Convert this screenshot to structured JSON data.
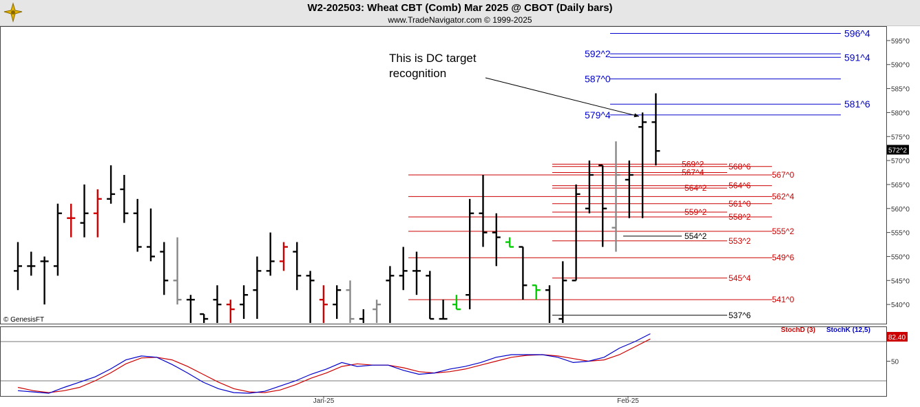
{
  "header": {
    "title": "W2-202503:  Wheat CBT (Comb) Mar 2025 @ CBOT  (Daily bars)",
    "subtitle": "www.TradeNavigator.com © 1999-2025"
  },
  "chart_data": {
    "type": "ohlc",
    "y_axis": {
      "range": [
        536,
        598
      ],
      "ticks": [
        "540^0",
        "545^0",
        "550^0",
        "555^0",
        "560^0",
        "565^0",
        "570^0",
        "575^0",
        "580^0",
        "585^0",
        "590^0",
        "595^0"
      ]
    },
    "x_axis": {
      "labels": [
        "Jan-25",
        "Feb-25"
      ]
    },
    "last_price_label": "572^2",
    "watermark": "© GenesisFT",
    "annotation": {
      "lines": [
        "This is DC target",
        "recognition"
      ]
    },
    "bars": [
      {
        "o": 547,
        "h": 553,
        "l": 543,
        "c": 548,
        "color": "#000000"
      },
      {
        "o": 548,
        "h": 551,
        "l": 546,
        "c": 548,
        "color": "#000000"
      },
      {
        "o": 549,
        "h": 550,
        "l": 540,
        "c": 549,
        "color": "#000000"
      },
      {
        "o": 548,
        "h": 561,
        "l": 546,
        "c": 559,
        "color": "#000000"
      },
      {
        "o": 558,
        "h": 561,
        "l": 554,
        "c": 558,
        "color": "#cc0000"
      },
      {
        "o": 557,
        "h": 565,
        "l": 554,
        "c": 559,
        "color": "#000000"
      },
      {
        "o": 559,
        "h": 564,
        "l": 554,
        "c": 562,
        "color": "#cc0000"
      },
      {
        "o": 562,
        "h": 569,
        "l": 561,
        "c": 563,
        "color": "#000000"
      },
      {
        "o": 564,
        "h": 567,
        "l": 557,
        "c": 559,
        "color": "#000000"
      },
      {
        "o": 559,
        "h": 562,
        "l": 551,
        "c": 552,
        "color": "#000000"
      },
      {
        "o": 552,
        "h": 560,
        "l": 549,
        "c": 550,
        "color": "#000000"
      },
      {
        "o": 551,
        "h": 553,
        "l": 542,
        "c": 545,
        "color": "#000000"
      },
      {
        "o": 545,
        "h": 554,
        "l": 540,
        "c": 541,
        "color": "#888888"
      },
      {
        "o": 541,
        "h": 542,
        "l": 536,
        "c": 541,
        "color": "#000000"
      },
      {
        "o": 538,
        "h": 538,
        "l": 536,
        "c": 537,
        "color": "#000000"
      },
      {
        "o": 541,
        "h": 544,
        "l": 536,
        "c": 540,
        "color": "#000000"
      },
      {
        "o": 540,
        "h": 541,
        "l": 536,
        "c": 539,
        "color": "#cc0000"
      },
      {
        "o": 540,
        "h": 544,
        "l": 537,
        "c": 542,
        "color": "#000000"
      },
      {
        "o": 543,
        "h": 550,
        "l": 537,
        "c": 547,
        "color": "#000000"
      },
      {
        "o": 547,
        "h": 555,
        "l": 546,
        "c": 549,
        "color": "#000000"
      },
      {
        "o": 549,
        "h": 553,
        "l": 547,
        "c": 552,
        "color": "#cc0000"
      },
      {
        "o": 551,
        "h": 553,
        "l": 543,
        "c": 546,
        "color": "#000000"
      },
      {
        "o": 546,
        "h": 547,
        "l": 536,
        "c": 545,
        "color": "#000000"
      },
      {
        "o": 541,
        "h": 544,
        "l": 536,
        "c": 540,
        "color": "#cc0000"
      },
      {
        "o": 540,
        "h": 544,
        "l": 537,
        "c": 543,
        "color": "#000000"
      },
      {
        "o": 543,
        "h": 545,
        "l": 536,
        "c": 537,
        "color": "#888888"
      },
      {
        "o": 537,
        "h": 539,
        "l": 536,
        "c": 536,
        "color": "#000000"
      },
      {
        "o": 539,
        "h": 541,
        "l": 536,
        "c": 540,
        "color": "#888888"
      },
      {
        "o": 545,
        "h": 548,
        "l": 536,
        "c": 546,
        "color": "#000000"
      },
      {
        "o": 546,
        "h": 552,
        "l": 543,
        "c": 547,
        "color": "#000000"
      },
      {
        "o": 547,
        "h": 551,
        "l": 542,
        "c": 547,
        "color": "#000000"
      },
      {
        "o": 546,
        "h": 547,
        "l": 537,
        "c": 537,
        "color": "#000000"
      },
      {
        "o": 537,
        "h": 541,
        "l": 537,
        "c": 537,
        "color": "#000000"
      },
      {
        "o": 540,
        "h": 542,
        "l": 539,
        "c": 539,
        "color": "#00cc00"
      },
      {
        "o": 542,
        "h": 562,
        "l": 539,
        "c": 559,
        "color": "#000000"
      },
      {
        "o": 559,
        "h": 567,
        "l": 552,
        "c": 555,
        "color": "#000000"
      },
      {
        "o": 555,
        "h": 559,
        "l": 548,
        "c": 554,
        "color": "#000000"
      },
      {
        "o": 553,
        "h": 554,
        "l": 552,
        "c": 552,
        "color": "#00cc00"
      },
      {
        "o": 552,
        "h": 552,
        "l": 541,
        "c": 544,
        "color": "#000000"
      },
      {
        "o": 544,
        "h": 544,
        "l": 541,
        "c": 543,
        "color": "#00cc00"
      },
      {
        "o": 543,
        "h": 544,
        "l": 536,
        "c": 536,
        "color": "#000000"
      },
      {
        "o": 537,
        "h": 549,
        "l": 536,
        "c": 545,
        "color": "#000000"
      },
      {
        "o": 545,
        "h": 565,
        "l": 545,
        "c": 563,
        "color": "#000000"
      },
      {
        "o": 560,
        "h": 570,
        "l": 559,
        "c": 567,
        "color": "#000000"
      },
      {
        "o": 569,
        "h": 569,
        "l": 552,
        "c": 560,
        "color": "#000000"
      },
      {
        "o": 556,
        "h": 574,
        "l": 551,
        "c": 567,
        "color": "#888888"
      },
      {
        "o": 566,
        "h": 570,
        "l": 558,
        "c": 567,
        "color": "#000000"
      },
      {
        "o": 577,
        "h": 580,
        "l": 558,
        "c": 578,
        "color": "#000000"
      },
      {
        "o": 578,
        "h": 584,
        "l": 569,
        "c": 572,
        "color": "#000000"
      }
    ],
    "levels": [
      {
        "value": 596.5,
        "label": "596^4",
        "color": "#0000cc"
      },
      {
        "value": 592.25,
        "label": "592^2",
        "color": "#0000cc"
      },
      {
        "value": 591.5,
        "label": "591^4",
        "color": "#0000cc"
      },
      {
        "value": 587,
        "label": "587^0",
        "color": "#0000cc"
      },
      {
        "value": 581.75,
        "label": "581^6",
        "color": "#0000cc"
      },
      {
        "value": 579.5,
        "label": "579^4",
        "color": "#0000cc"
      },
      {
        "value": 569.25,
        "label": "569^2",
        "color": "#cc0000"
      },
      {
        "value": 568.75,
        "label": "568^6",
        "color": "#cc0000"
      },
      {
        "value": 567.5,
        "label": "567^4",
        "color": "#cc0000"
      },
      {
        "value": 567,
        "label": "567^0",
        "color": "#cc0000"
      },
      {
        "value": 564.75,
        "label": "564^6",
        "color": "#cc0000"
      },
      {
        "value": 564.25,
        "label": "564^2",
        "color": "#cc0000"
      },
      {
        "value": 562.5,
        "label": "562^4",
        "color": "#cc0000"
      },
      {
        "value": 561,
        "label": "561^0",
        "color": "#cc0000"
      },
      {
        "value": 559.25,
        "label": "559^2",
        "color": "#cc0000"
      },
      {
        "value": 558.25,
        "label": "558^2",
        "color": "#cc0000"
      },
      {
        "value": 555.25,
        "label": "555^2",
        "color": "#cc0000"
      },
      {
        "value": 554.25,
        "label": "554^2",
        "color": "#000000"
      },
      {
        "value": 553.25,
        "label": "553^2",
        "color": "#cc0000"
      },
      {
        "value": 549.75,
        "label": "549^6",
        "color": "#cc0000"
      },
      {
        "value": 545.5,
        "label": "545^4",
        "color": "#cc0000"
      },
      {
        "value": 541,
        "label": "541^0",
        "color": "#cc0000"
      },
      {
        "value": 537.75,
        "label": "537^6",
        "color": "#000000"
      }
    ],
    "stochastic": {
      "legend": [
        {
          "name": "StochD (3)",
          "color": "#cc0000"
        },
        {
          "name": "StochK (12,5)",
          "color": "#0000cc"
        }
      ],
      "y_tick": "50",
      "value_label": "82.40",
      "k": [
        5,
        3,
        1,
        10,
        18,
        26,
        38,
        52,
        58,
        56,
        45,
        32,
        18,
        8,
        2,
        1,
        4,
        12,
        20,
        30,
        38,
        48,
        42,
        44,
        44,
        36,
        30,
        32,
        38,
        42,
        48,
        56,
        60,
        60,
        60,
        56,
        48,
        50,
        56,
        70,
        80,
        92
      ],
      "d": [
        10,
        5,
        2,
        5,
        10,
        20,
        32,
        46,
        55,
        56,
        52,
        42,
        30,
        18,
        8,
        3,
        2,
        6,
        14,
        24,
        32,
        42,
        46,
        44,
        44,
        40,
        34,
        32,
        34,
        38,
        44,
        50,
        56,
        59,
        60,
        58,
        54,
        50,
        52,
        60,
        72,
        84
      ]
    }
  }
}
